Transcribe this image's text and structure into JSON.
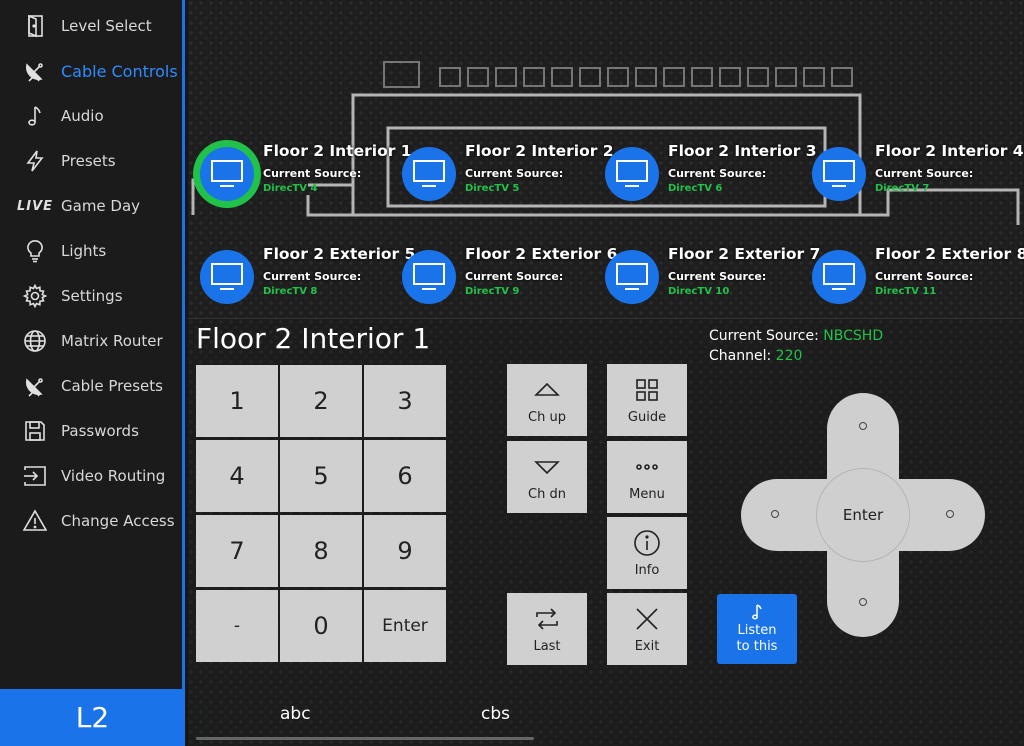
{
  "sidebar": {
    "items": [
      {
        "label": "Level Select",
        "icon": "door-icon"
      },
      {
        "label": "Cable Controls",
        "icon": "satellite-dish-icon",
        "active": true
      },
      {
        "label": "Audio",
        "icon": "music-note-icon"
      },
      {
        "label": "Presets",
        "icon": "lightning-icon"
      },
      {
        "label": "Game Day",
        "icon": "live-icon",
        "icon_text": "LIVE"
      },
      {
        "label": "Lights",
        "icon": "lightbulb-icon"
      },
      {
        "label": "Settings",
        "icon": "gear-icon"
      },
      {
        "label": "Matrix Router",
        "icon": "globe-icon"
      },
      {
        "label": "Cable Presets",
        "icon": "satellite-dish-icon"
      },
      {
        "label": "Passwords",
        "icon": "floppy-disk-icon"
      },
      {
        "label": "Video Routing",
        "icon": "input-icon"
      },
      {
        "label": "Change Access",
        "icon": "warning-icon"
      }
    ],
    "level": "L2"
  },
  "zones": {
    "source_label": "Current Source:",
    "items": [
      {
        "name": "Floor 2 Interior 1",
        "source": "DirecTV 4",
        "selected": true
      },
      {
        "name": "Floor 2 Interior 2",
        "source": "DirecTV 5"
      },
      {
        "name": "Floor 2 Interior 3",
        "source": "DirecTV 6"
      },
      {
        "name": "Floor 2 Interior 4",
        "source": "DirecTV 7"
      },
      {
        "name": "Floor 2 Exterior 5",
        "source": "DirecTV 8"
      },
      {
        "name": "Floor 2 Exterior 6",
        "source": "DirecTV 9"
      },
      {
        "name": "Floor 2 Exterior 7",
        "source": "DirecTV 10"
      },
      {
        "name": "Floor 2 Exterior 8",
        "source": "DirecTV 11"
      }
    ]
  },
  "control": {
    "title": "Floor 2 Interior 1",
    "current_source_label": "Current Source:",
    "current_source_value": "NBCSHD",
    "channel_label": "Channel:",
    "channel_value": "220"
  },
  "keypad": [
    "1",
    "2",
    "3",
    "4",
    "5",
    "6",
    "7",
    "8",
    "9",
    "-",
    "0",
    "Enter"
  ],
  "buttons": {
    "ch_up": "Ch up",
    "ch_dn": "Ch dn",
    "last": "Last",
    "guide": "Guide",
    "menu": "Menu",
    "info": "Info",
    "exit": "Exit",
    "listen_line1": "Listen",
    "listen_line2": "to this",
    "dpad_enter": "Enter"
  },
  "presets": [
    "abc",
    "cbs"
  ],
  "colors": {
    "accent": "#1a73e8",
    "selected_ring": "#21c24a",
    "source_green": "#21c24a"
  }
}
